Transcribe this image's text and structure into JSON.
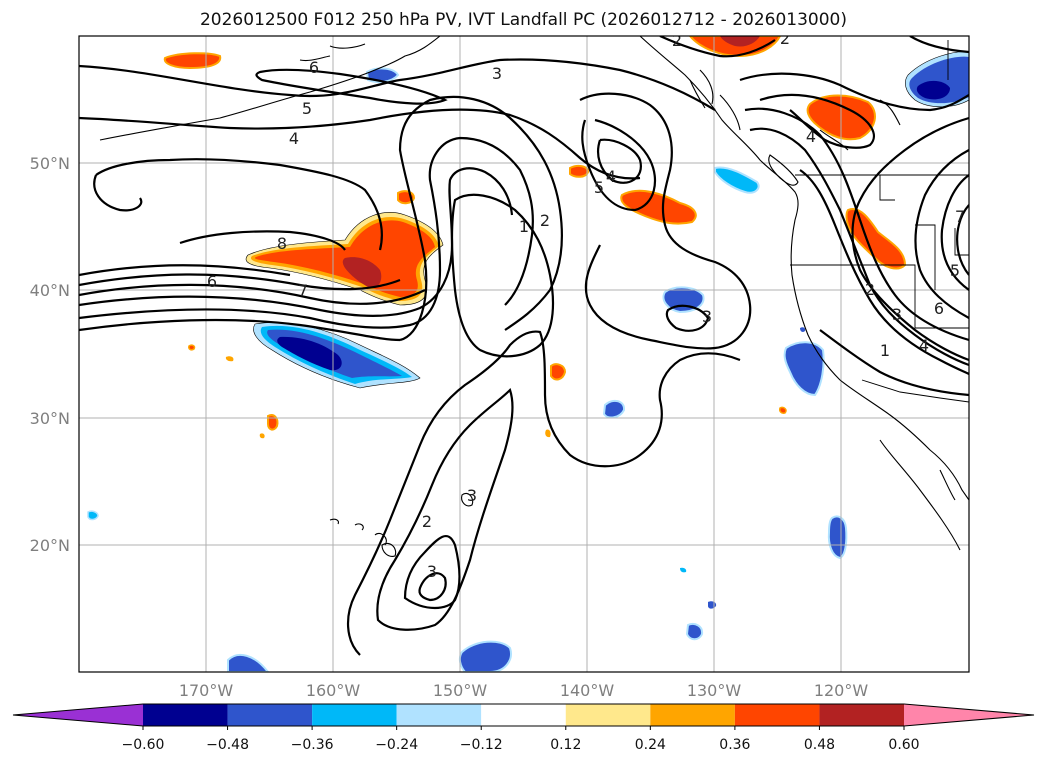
{
  "title": "2026012500 F012 250 hPa PV, IVT Landfall PC (2026012712 - 2026013000)",
  "lat_labels": [
    "50°N",
    "40°N",
    "30°N",
    "20°N"
  ],
  "lon_labels": [
    "170°W",
    "160°W",
    "150°W",
    "140°W",
    "130°W",
    "120°W"
  ],
  "colorbar": {
    "ticks": [
      "−0.60",
      "−0.48",
      "−0.36",
      "−0.24",
      "−0.12",
      "0.12",
      "0.24",
      "0.36",
      "0.48",
      "0.60"
    ],
    "colors": [
      "#9a30d4",
      "#000090",
      "#2f55cc",
      "#00b8f8",
      "#b0e2ff",
      "#ffffff",
      "#ffe88c",
      "#ffa500",
      "#ff4500",
      "#b22222",
      "#ff85aa"
    ]
  },
  "contour_labels": [
    "6",
    "7",
    "8",
    "6",
    "5",
    "4",
    "3",
    "2",
    "1",
    "2",
    "4",
    "5",
    "3",
    "3",
    "2",
    "3",
    "2",
    "4",
    "2",
    "3",
    "1",
    "4",
    "5",
    "6",
    "7"
  ],
  "chart_data": {
    "type": "map",
    "title": "2026012500 F012 250 hPa PV, IVT Landfall PC (2026012712 - 2026013000)",
    "lon_range": [
      -180,
      -110
    ],
    "lat_range": [
      10,
      60
    ],
    "contour_field": "250 hPa PV (PVU)",
    "contour_levels": [
      1,
      2,
      3,
      4,
      5,
      6,
      7,
      8
    ],
    "fill_field": "IVT Landfall PC",
    "fill_levels": [
      -0.6,
      -0.48,
      -0.36,
      -0.24,
      -0.12,
      0.12,
      0.24,
      0.36,
      0.48,
      0.6
    ]
  }
}
